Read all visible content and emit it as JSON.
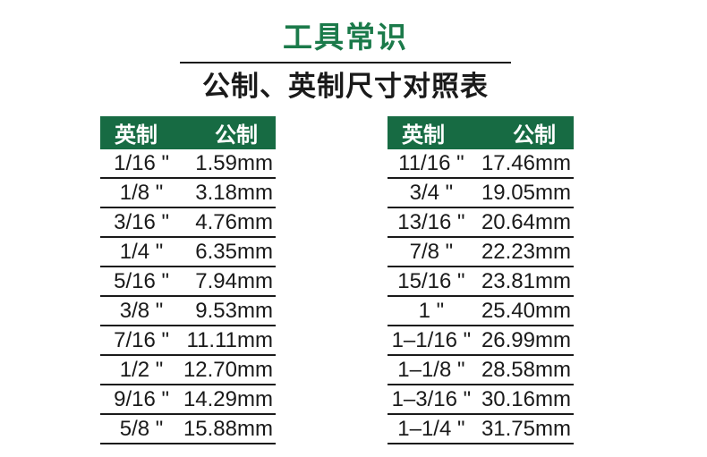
{
  "page": {
    "title": "工具常识",
    "subtitle": "公制、英制尺寸对照表"
  },
  "colors": {
    "title_green": "#1b7a4a",
    "header_green": "#176b43",
    "text": "#1a1a1a",
    "header_text": "#ffffff",
    "background": "#ffffff"
  },
  "tables": {
    "left": {
      "headers": {
        "imperial": "英制",
        "metric": "公制"
      },
      "rows": [
        {
          "inch": "1/16 \"",
          "mm": "1.59mm"
        },
        {
          "inch": "1/8 \"",
          "mm": "3.18mm"
        },
        {
          "inch": "3/16 \"",
          "mm": "4.76mm"
        },
        {
          "inch": "1/4 \"",
          "mm": "6.35mm"
        },
        {
          "inch": "5/16 \"",
          "mm": "7.94mm"
        },
        {
          "inch": "3/8 \"",
          "mm": "9.53mm"
        },
        {
          "inch": "7/16 \"",
          "mm": "11.11mm"
        },
        {
          "inch": "1/2 \"",
          "mm": "12.70mm"
        },
        {
          "inch": "9/16 \"",
          "mm": "14.29mm"
        },
        {
          "inch": "5/8 \"",
          "mm": "15.88mm"
        }
      ]
    },
    "right": {
      "headers": {
        "imperial": "英制",
        "metric": "公制"
      },
      "rows": [
        {
          "inch": "11/16 \"",
          "mm": "17.46mm"
        },
        {
          "inch": "3/4 \"",
          "mm": "19.05mm"
        },
        {
          "inch": "13/16 \"",
          "mm": "20.64mm"
        },
        {
          "inch": "7/8 \"",
          "mm": "22.23mm"
        },
        {
          "inch": "15/16 \"",
          "mm": "23.81mm"
        },
        {
          "inch": "1 \"",
          "mm": "25.40mm"
        },
        {
          "inch": "1–1/16 \"",
          "mm": "26.99mm"
        },
        {
          "inch": "1–1/8 \"",
          "mm": "28.58mm"
        },
        {
          "inch": "1–3/16 \"",
          "mm": "30.16mm"
        },
        {
          "inch": "1–1/4 \"",
          "mm": "31.75mm"
        }
      ]
    }
  }
}
